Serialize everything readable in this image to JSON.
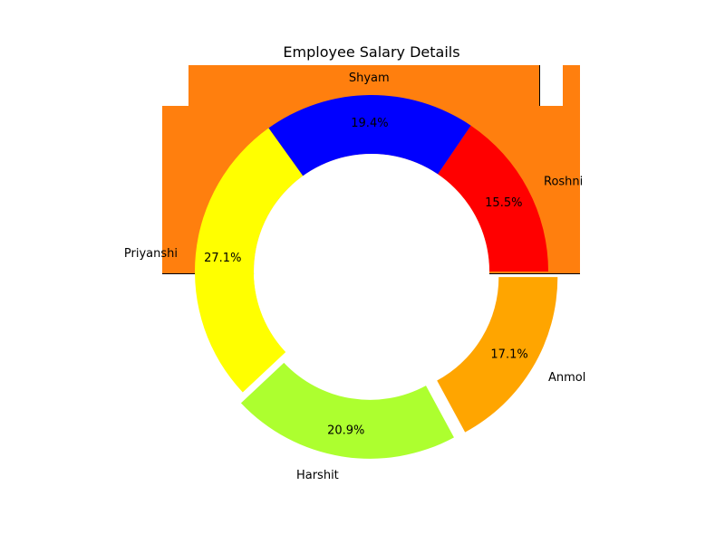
{
  "chart_data": {
    "type": "pie",
    "style": "donut",
    "title": "Employee Salary Details",
    "categories": [
      "Roshni",
      "Shyam",
      "Priyanshi",
      "Harshit",
      "Anmol"
    ],
    "values": [
      15.5,
      19.4,
      27.1,
      20.9,
      17.1
    ],
    "value_labels": [
      "15.5%",
      "19.4%",
      "27.1%",
      "20.9%",
      "17.1%"
    ],
    "colors": [
      "#ff0000",
      "#0000ff",
      "#ffff00",
      "#adff2f",
      "#ffa500"
    ],
    "start_angle_deg": 0,
    "direction": "counterclockwise",
    "exploded": [
      false,
      false,
      false,
      true,
      true
    ],
    "background_color": "#ff7f0e",
    "legend": "none",
    "grid": false
  }
}
